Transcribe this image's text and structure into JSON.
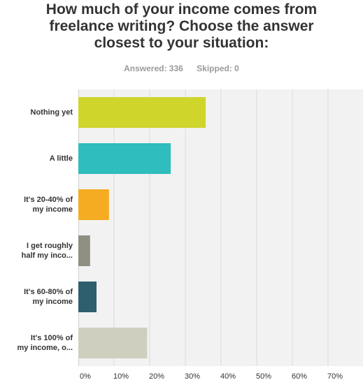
{
  "title_lines": [
    "How much of your income comes from",
    "freelance writing? Choose the answer",
    "closest to your situation:"
  ],
  "answered": "Answered: 336",
  "skipped": "Skipped: 0",
  "chart_data": {
    "type": "bar",
    "orientation": "horizontal",
    "categories": [
      [
        "Nothing yet"
      ],
      [
        "A little"
      ],
      [
        "It's 20-40% of",
        "my income"
      ],
      [
        "I get roughly",
        "half my inco..."
      ],
      [
        "It's 60-80% of",
        "my income"
      ],
      [
        "It's 100% of",
        "my income, o..."
      ]
    ],
    "values": [
      35.7,
      25.9,
      8.6,
      3.3,
      5.1,
      19.3
    ],
    "colors": [
      "#cfd52b",
      "#2fbdbd",
      "#f5ac22",
      "#8f8f82",
      "#2e5f6e",
      "#cfcfc0"
    ],
    "xlim": [
      0,
      70
    ],
    "x_ticks": [
      "0%",
      "10%",
      "20%",
      "30%",
      "40%",
      "50%",
      "60%",
      "70%"
    ],
    "grid": true
  }
}
